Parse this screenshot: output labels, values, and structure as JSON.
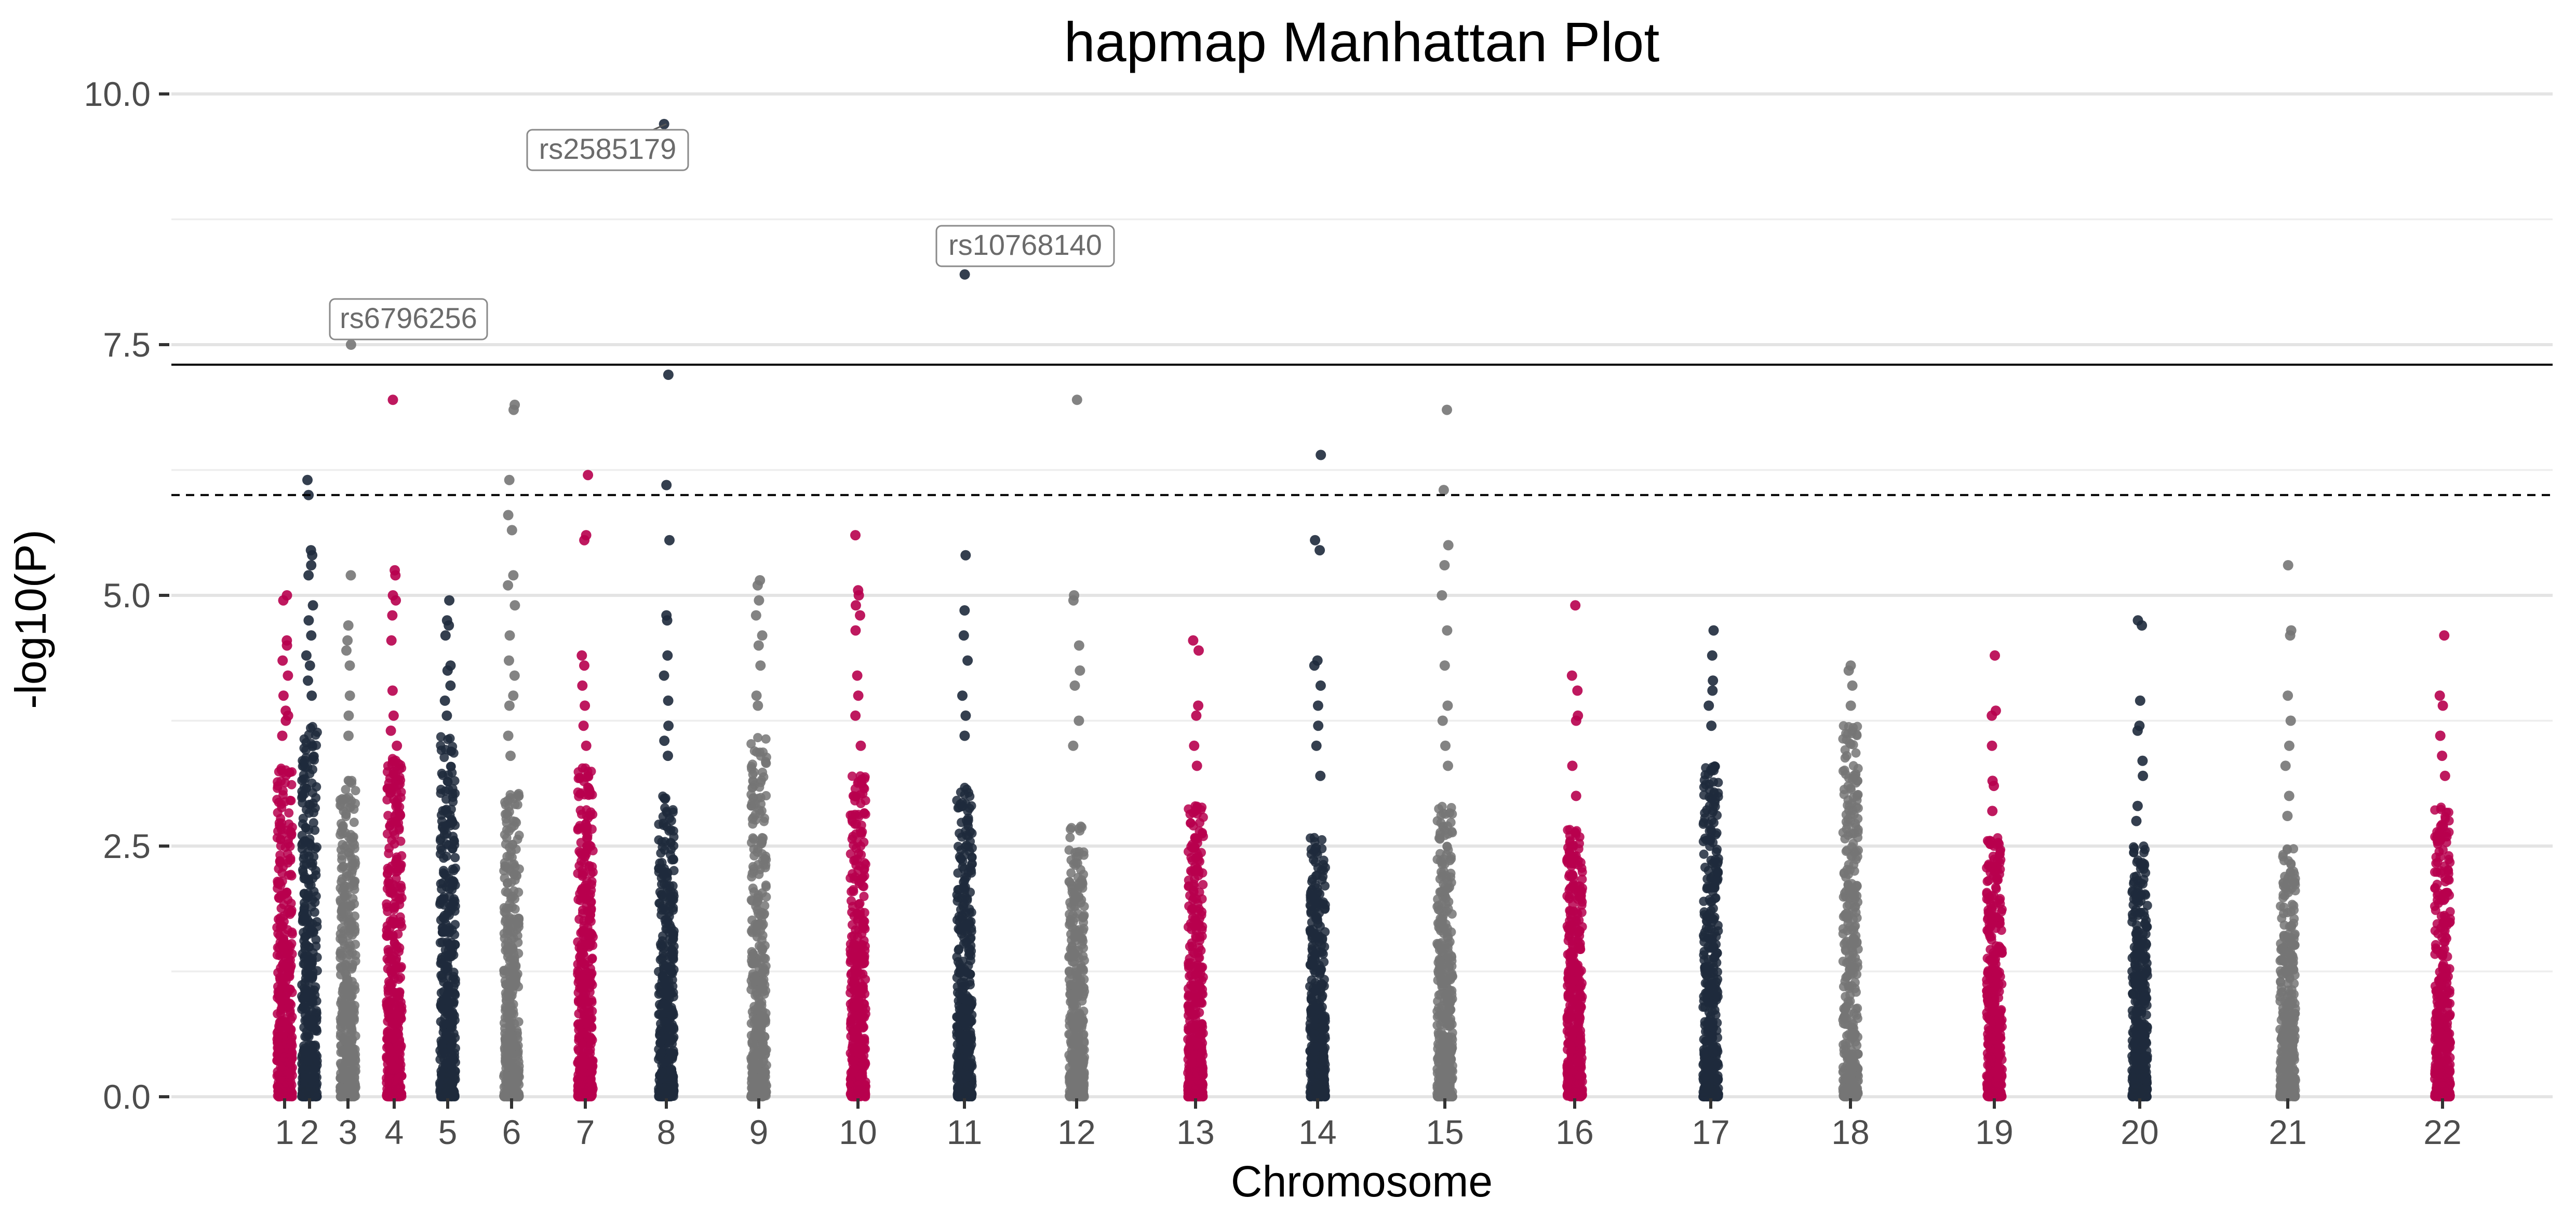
{
  "chart_data": {
    "type": "scatter",
    "title": "hapmap Manhattan Plot",
    "xlabel": "Chromosome",
    "ylabel": "-log10(P)",
    "ylim": [
      0,
      10.3
    ],
    "y_ticks": [
      0.0,
      2.5,
      5.0,
      7.5,
      10.0
    ],
    "y_tick_labels": [
      "0.0",
      "2.5",
      "5.0",
      "7.5",
      "10.0"
    ],
    "grid": true,
    "legend": "none",
    "colors": [
      "#B7004E",
      "#1E2A3C",
      "#757575"
    ],
    "genome_wide_line": 7.3,
    "suggestive_line": 6.0,
    "chromosomes": [
      {
        "label": "1",
        "index": 1,
        "color": "#B7004E",
        "base_max": 3.3,
        "top": [
          5.0,
          4.95,
          4.55,
          4.5,
          4.35,
          4.2,
          4.0,
          3.85,
          3.8,
          3.75,
          3.6
        ]
      },
      {
        "label": "2",
        "index": 2,
        "color": "#1E2A3C",
        "base_max": 3.7,
        "top": [
          6.15,
          6.0,
          5.45,
          5.4,
          5.3,
          5.2,
          4.9,
          4.75,
          4.6,
          4.4,
          4.3,
          4.15,
          4.0
        ]
      },
      {
        "label": "3",
        "index": 3,
        "color": "#757575",
        "base_max": 3.2,
        "top": [
          7.5,
          5.2,
          4.7,
          4.55,
          4.45,
          4.3,
          4.0,
          3.8,
          3.6
        ]
      },
      {
        "label": "4",
        "index": 4,
        "color": "#B7004E",
        "base_max": 3.4,
        "top": [
          6.95,
          5.25,
          5.2,
          5.0,
          4.95,
          4.8,
          4.55,
          4.05,
          3.8,
          3.65,
          3.5
        ]
      },
      {
        "label": "5",
        "index": 5,
        "color": "#1E2A3C",
        "base_max": 3.6,
        "top": [
          4.95,
          4.75,
          4.7,
          4.6,
          4.3,
          4.25,
          4.1,
          3.95,
          3.8
        ]
      },
      {
        "label": "6",
        "index": 6,
        "color": "#757575",
        "base_max": 3.1,
        "top": [
          6.9,
          6.85,
          6.15,
          5.8,
          5.65,
          5.2,
          5.1,
          4.9,
          4.6,
          4.35,
          4.2,
          4.0,
          3.9,
          3.6,
          3.4
        ]
      },
      {
        "label": "7",
        "index": 7,
        "color": "#B7004E",
        "base_max": 3.3,
        "top": [
          6.2,
          5.6,
          5.55,
          4.4,
          4.3,
          4.1,
          3.9,
          3.7,
          3.5
        ]
      },
      {
        "label": "8",
        "index": 8,
        "color": "#1E2A3C",
        "base_max": 3.0,
        "top": [
          9.7,
          7.2,
          6.1,
          5.55,
          4.8,
          4.75,
          4.4,
          4.2,
          3.95,
          3.7,
          3.55,
          3.4
        ]
      },
      {
        "label": "9",
        "index": 9,
        "color": "#757575",
        "base_max": 3.6,
        "top": [
          5.15,
          5.1,
          4.95,
          4.8,
          4.6,
          4.5,
          4.3,
          4.0,
          3.9
        ]
      },
      {
        "label": "10",
        "index": 10,
        "color": "#B7004E",
        "base_max": 3.2,
        "top": [
          5.6,
          5.05,
          5.0,
          4.9,
          4.8,
          4.65,
          4.2,
          4.0,
          3.8,
          3.5
        ]
      },
      {
        "label": "11",
        "index": 11,
        "color": "#1E2A3C",
        "base_max": 3.1,
        "top": [
          8.2,
          5.4,
          4.85,
          4.6,
          4.35,
          4.0,
          3.8,
          3.6
        ]
      },
      {
        "label": "12",
        "index": 12,
        "color": "#757575",
        "base_max": 2.7,
        "top": [
          6.95,
          5.0,
          4.95,
          4.5,
          4.25,
          4.1,
          3.75,
          3.5
        ]
      },
      {
        "label": "13",
        "index": 13,
        "color": "#B7004E",
        "base_max": 2.9,
        "top": [
          4.55,
          4.45,
          3.9,
          3.8,
          3.5,
          3.3
        ]
      },
      {
        "label": "14",
        "index": 14,
        "color": "#1E2A3C",
        "base_max": 2.6,
        "top": [
          6.4,
          5.55,
          5.45,
          4.35,
          4.3,
          4.1,
          3.9,
          3.7,
          3.5,
          3.2
        ]
      },
      {
        "label": "15",
        "index": 15,
        "color": "#757575",
        "base_max": 2.9,
        "top": [
          6.85,
          6.05,
          5.5,
          5.3,
          5.0,
          4.65,
          4.3,
          3.9,
          3.75,
          3.5,
          3.3
        ]
      },
      {
        "label": "16",
        "index": 16,
        "color": "#B7004E",
        "base_max": 2.7,
        "top": [
          4.9,
          4.2,
          4.05,
          3.8,
          3.75,
          3.3,
          3.0
        ]
      },
      {
        "label": "17",
        "index": 17,
        "color": "#1E2A3C",
        "base_max": 3.3,
        "top": [
          4.65,
          4.4,
          4.15,
          4.05,
          3.9,
          3.7
        ]
      },
      {
        "label": "18",
        "index": 18,
        "color": "#757575",
        "base_max": 3.7,
        "top": [
          4.3,
          4.25,
          4.1,
          3.9
        ]
      },
      {
        "label": "19",
        "index": 19,
        "color": "#B7004E",
        "base_max": 2.6,
        "top": [
          4.4,
          3.85,
          3.8,
          3.5,
          3.15,
          3.1,
          2.85
        ]
      },
      {
        "label": "20",
        "index": 20,
        "color": "#1E2A3C",
        "base_max": 2.5,
        "top": [
          4.75,
          4.7,
          3.95,
          3.7,
          3.65,
          3.35,
          3.2,
          2.9,
          2.75
        ]
      },
      {
        "label": "21",
        "index": 21,
        "color": "#757575",
        "base_max": 2.5,
        "top": [
          5.3,
          4.65,
          4.6,
          4.0,
          3.75,
          3.5,
          3.3,
          3.0,
          2.8
        ]
      },
      {
        "label": "22",
        "index": 22,
        "color": "#B7004E",
        "base_max": 2.9,
        "top": [
          4.6,
          4.0,
          3.9,
          3.6,
          3.4,
          3.2
        ]
      }
    ],
    "annotations": [
      {
        "label": "rs2585179",
        "chromosome": "8",
        "y": 9.7
      },
      {
        "label": "rs10768140",
        "chromosome": "11",
        "y": 8.2
      },
      {
        "label": "rs6796256",
        "chromosome": "3",
        "y": 7.5
      }
    ]
  }
}
